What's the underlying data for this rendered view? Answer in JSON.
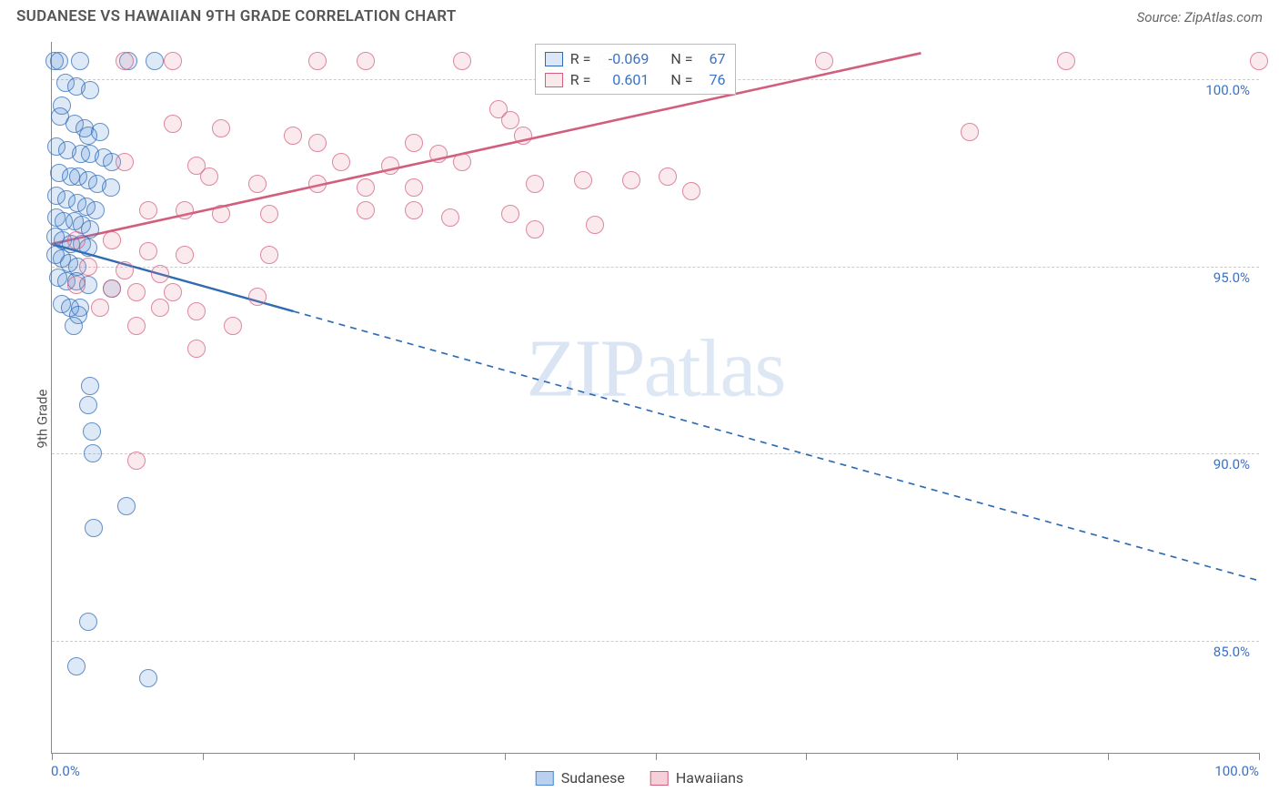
{
  "title": "SUDANESE VS HAWAIIAN 9TH GRADE CORRELATION CHART",
  "source": "Source: ZipAtlas.com",
  "ylabel": "9th Grade",
  "watermark": "ZIPatlas",
  "chart": {
    "type": "scatter",
    "xlim": [
      0,
      100
    ],
    "ylim": [
      82,
      101
    ],
    "x_min_label": "0.0%",
    "x_max_label": "100.0%",
    "xticks": [
      0,
      12.5,
      25,
      37.5,
      50,
      62.5,
      75,
      87.5,
      100
    ],
    "yticks": [
      {
        "v": 85,
        "label": "85.0%"
      },
      {
        "v": 90,
        "label": "90.0%"
      },
      {
        "v": 95,
        "label": "95.0%"
      },
      {
        "v": 100,
        "label": "100.0%"
      }
    ],
    "background_color": "#ffffff",
    "grid_color": "#cccccc",
    "axis_color": "#888888",
    "tick_label_color": "#3b71c5",
    "marker_radius": 10,
    "marker_fill_opacity": 0.18,
    "marker_stroke_opacity": 0.7,
    "series": [
      {
        "name": "Sudanese",
        "color": "#4a86d0",
        "stroke": "#2f6bb3",
        "R": "-0.069",
        "N": "67",
        "trend": {
          "x1": 0,
          "y1": 95.6,
          "x2": 100,
          "y2": 86.6,
          "solid_until_x": 20,
          "line_width": 2.4
        },
        "points": [
          [
            0.2,
            100.5
          ],
          [
            0.6,
            100.5
          ],
          [
            2.3,
            100.5
          ],
          [
            6.3,
            100.5
          ],
          [
            8.5,
            100.5
          ],
          [
            1.1,
            99.9
          ],
          [
            2.0,
            99.8
          ],
          [
            3.2,
            99.7
          ],
          [
            0.8,
            99.3
          ],
          [
            0.7,
            99.0
          ],
          [
            1.9,
            98.8
          ],
          [
            2.7,
            98.7
          ],
          [
            4.0,
            98.6
          ],
          [
            3.0,
            98.5
          ],
          [
            0.4,
            98.2
          ],
          [
            1.3,
            98.1
          ],
          [
            2.4,
            98.0
          ],
          [
            3.2,
            98.0
          ],
          [
            4.3,
            97.9
          ],
          [
            5.0,
            97.8
          ],
          [
            0.6,
            97.5
          ],
          [
            1.6,
            97.4
          ],
          [
            2.2,
            97.4
          ],
          [
            3.0,
            97.3
          ],
          [
            3.8,
            97.2
          ],
          [
            4.9,
            97.1
          ],
          [
            0.4,
            96.9
          ],
          [
            1.2,
            96.8
          ],
          [
            2.1,
            96.7
          ],
          [
            2.9,
            96.6
          ],
          [
            3.6,
            96.5
          ],
          [
            0.4,
            96.3
          ],
          [
            1.0,
            96.2
          ],
          [
            1.9,
            96.2
          ],
          [
            2.5,
            96.1
          ],
          [
            3.2,
            96.0
          ],
          [
            0.3,
            95.8
          ],
          [
            0.9,
            95.7
          ],
          [
            1.6,
            95.6
          ],
          [
            2.5,
            95.6
          ],
          [
            3.0,
            95.5
          ],
          [
            0.3,
            95.3
          ],
          [
            0.8,
            95.2
          ],
          [
            1.4,
            95.1
          ],
          [
            2.1,
            95.0
          ],
          [
            0.5,
            94.7
          ],
          [
            1.2,
            94.6
          ],
          [
            2.0,
            94.6
          ],
          [
            3.0,
            94.5
          ],
          [
            5.0,
            94.4
          ],
          [
            0.8,
            94.0
          ],
          [
            1.5,
            93.9
          ],
          [
            2.3,
            93.9
          ],
          [
            2.2,
            93.7
          ],
          [
            1.8,
            93.4
          ],
          [
            3.2,
            91.8
          ],
          [
            3.0,
            91.3
          ],
          [
            3.3,
            90.6
          ],
          [
            3.4,
            90.0
          ],
          [
            6.2,
            88.6
          ],
          [
            3.5,
            88.0
          ],
          [
            3.0,
            85.5
          ],
          [
            2.0,
            84.3
          ],
          [
            8.0,
            84.0
          ]
        ]
      },
      {
        "name": "Hawaiians",
        "color": "#e28aa0",
        "stroke": "#d25e7e",
        "R": "0.601",
        "N": "76",
        "trend": {
          "x1": 0,
          "y1": 95.6,
          "x2": 72,
          "y2": 100.7,
          "solid_until_x": 72,
          "line_width": 2.6
        },
        "points": [
          [
            6,
            100.5
          ],
          [
            10,
            100.5
          ],
          [
            22,
            100.5
          ],
          [
            26,
            100.5
          ],
          [
            34,
            100.5
          ],
          [
            46,
            100.5
          ],
          [
            48,
            100.5
          ],
          [
            64,
            100.5
          ],
          [
            84,
            100.5
          ],
          [
            100,
            100.5
          ],
          [
            37,
            99.2
          ],
          [
            38,
            98.9
          ],
          [
            39,
            98.5
          ],
          [
            76,
            98.6
          ],
          [
            10,
            98.8
          ],
          [
            14,
            98.7
          ],
          [
            20,
            98.5
          ],
          [
            22,
            98.3
          ],
          [
            30,
            98.3
          ],
          [
            32,
            98.0
          ],
          [
            6,
            97.8
          ],
          [
            12,
            97.7
          ],
          [
            24,
            97.8
          ],
          [
            28,
            97.7
          ],
          [
            34,
            97.8
          ],
          [
            13,
            97.4
          ],
          [
            17,
            97.2
          ],
          [
            22,
            97.2
          ],
          [
            26,
            97.1
          ],
          [
            30,
            97.1
          ],
          [
            40,
            97.2
          ],
          [
            44,
            97.3
          ],
          [
            48,
            97.3
          ],
          [
            51,
            97.4
          ],
          [
            53,
            97.0
          ],
          [
            8,
            96.5
          ],
          [
            11,
            96.5
          ],
          [
            14,
            96.4
          ],
          [
            18,
            96.4
          ],
          [
            26,
            96.5
          ],
          [
            30,
            96.5
          ],
          [
            33,
            96.3
          ],
          [
            38,
            96.4
          ],
          [
            40,
            96.0
          ],
          [
            45,
            96.1
          ],
          [
            2,
            95.7
          ],
          [
            5,
            95.7
          ],
          [
            8,
            95.4
          ],
          [
            11,
            95.3
          ],
          [
            18,
            95.3
          ],
          [
            3,
            95.0
          ],
          [
            6,
            94.9
          ],
          [
            9,
            94.8
          ],
          [
            2,
            94.5
          ],
          [
            5,
            94.4
          ],
          [
            7,
            94.3
          ],
          [
            10,
            94.3
          ],
          [
            17,
            94.2
          ],
          [
            4,
            93.9
          ],
          [
            9,
            93.9
          ],
          [
            12,
            93.8
          ],
          [
            7,
            93.4
          ],
          [
            15,
            93.4
          ],
          [
            12,
            92.8
          ],
          [
            7,
            89.8
          ]
        ]
      }
    ],
    "legend_names": [
      {
        "label": "Sudanese",
        "swatch_fill": "#b9d1ef",
        "swatch_border": "#4a86d0"
      },
      {
        "label": "Hawaiians",
        "swatch_fill": "#f5cfd9",
        "swatch_border": "#d25e7e"
      }
    ]
  }
}
